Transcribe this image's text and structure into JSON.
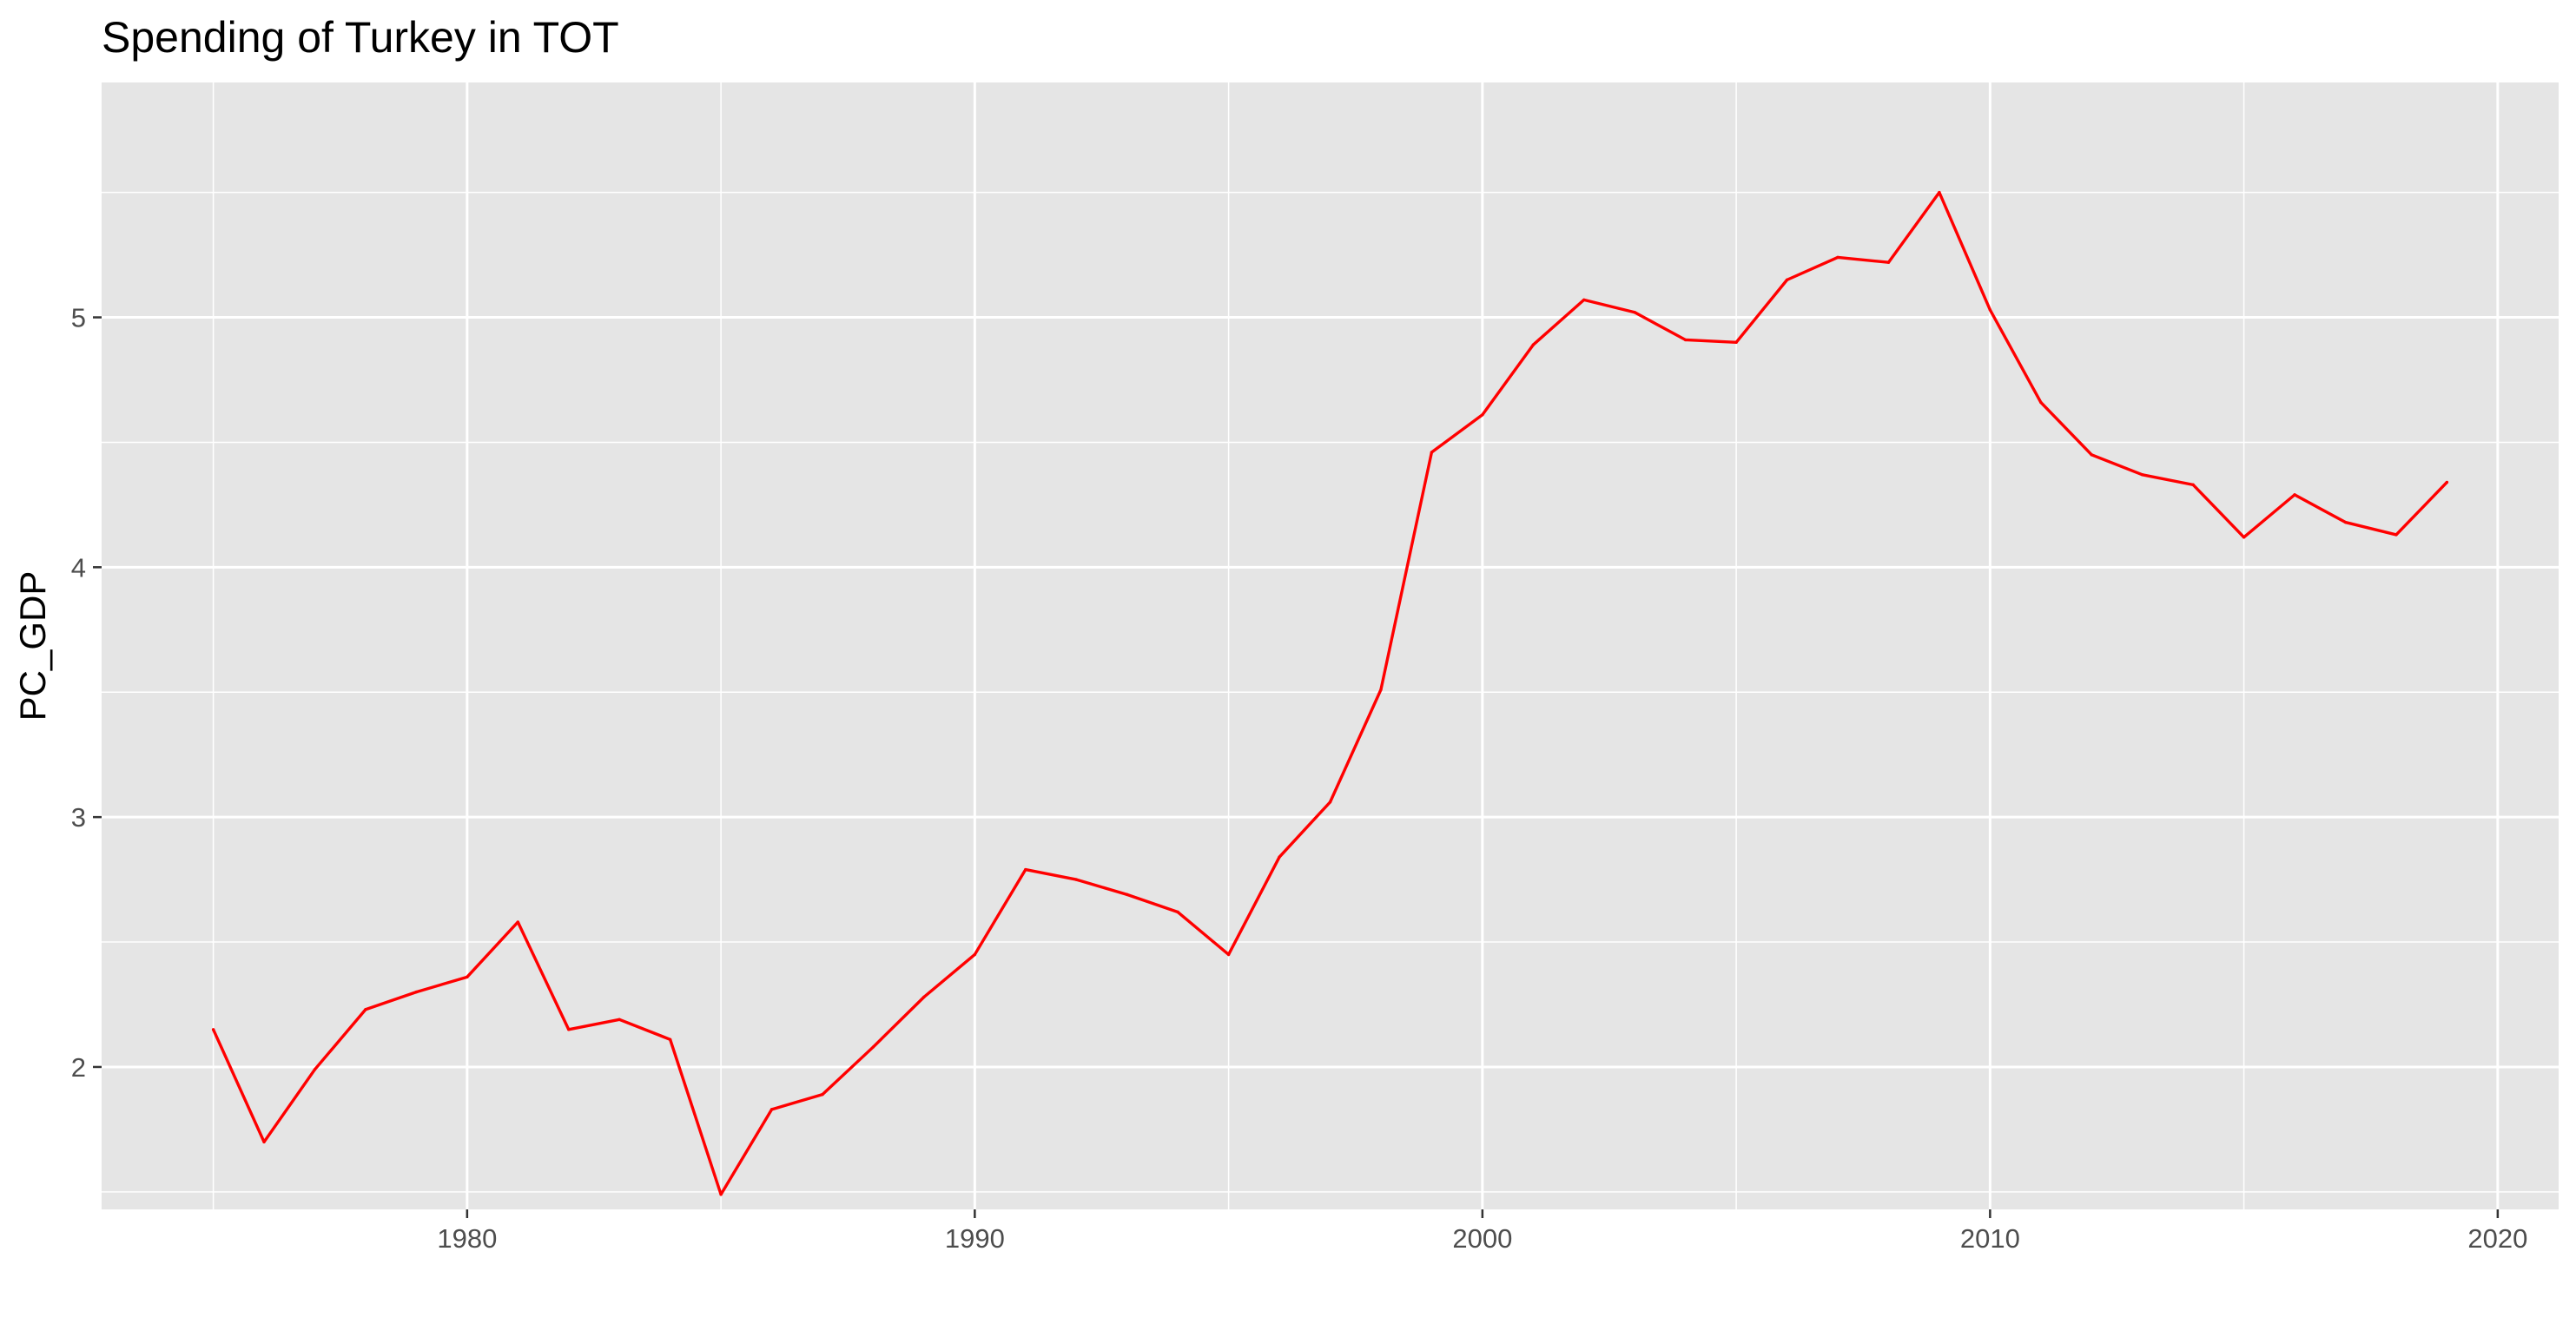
{
  "chart_data": {
    "type": "line",
    "title": "Spending of Turkey in TOT",
    "xlabel": "",
    "ylabel": "PC_GDP",
    "xlim": [
      1972.8,
      2021.2
    ],
    "ylim": [
      1.43,
      5.94
    ],
    "x_ticks": [
      1980,
      1990,
      2000,
      2010,
      2020
    ],
    "x_tick_labels": [
      "1980",
      "1990",
      "2000",
      "2010",
      "2020"
    ],
    "y_ticks": [
      2,
      3,
      4,
      5
    ],
    "y_tick_labels": [
      "2",
      "3",
      "4",
      "5"
    ],
    "grid": true,
    "legend": "none",
    "colors": {
      "panel_background": "#e5e5e5",
      "grid_major": "#ffffff",
      "line": "#ff0000"
    },
    "series": [
      {
        "x": [
          1975,
          1976,
          1977,
          1978,
          1979,
          1980,
          1981,
          1982,
          1983,
          1984,
          1985,
          1986,
          1987,
          1988,
          1989,
          1990,
          1991,
          1992,
          1993,
          1994,
          1995,
          1996,
          1997,
          1998,
          1999,
          2000,
          2001,
          2002,
          2003,
          2004,
          2005,
          2006,
          2007,
          2008,
          2009,
          2010,
          2011,
          2012,
          2013,
          2014,
          2015,
          2016,
          2017,
          2018,
          2019
        ],
        "values": [
          2.15,
          1.7,
          1.99,
          2.23,
          2.3,
          2.36,
          2.58,
          2.15,
          2.19,
          2.11,
          1.49,
          1.83,
          1.89,
          2.08,
          2.28,
          2.45,
          2.79,
          2.75,
          2.69,
          2.62,
          2.45,
          2.84,
          3.06,
          3.51,
          4.46,
          4.61,
          4.89,
          5.07,
          5.02,
          4.91,
          4.9,
          5.15,
          5.24,
          5.22,
          5.5,
          5.03,
          4.66,
          4.45,
          4.37,
          4.33,
          4.12,
          4.29,
          4.18,
          4.13,
          4.34
        ]
      }
    ]
  }
}
